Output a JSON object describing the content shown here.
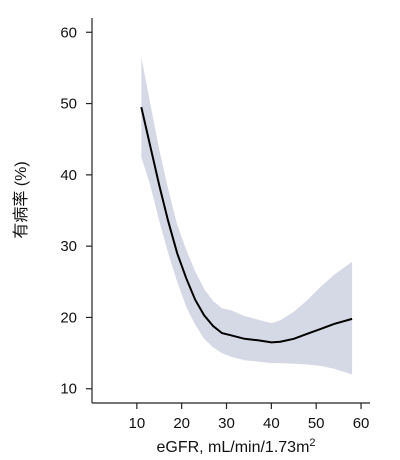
{
  "chart_data": {
    "type": "line",
    "xlabel": "eGFR, mL/min/1.73m",
    "xlabel_superscript": "2",
    "ylabel": "有病率 (%)",
    "xlim": [
      0,
      62
    ],
    "ylim": [
      8,
      62
    ],
    "x_ticks": [
      10,
      20,
      30,
      40,
      50,
      60
    ],
    "y_ticks": [
      10,
      20,
      30,
      40,
      50,
      60
    ],
    "grid": false,
    "legend": false,
    "colors": {
      "line": "#000000",
      "band": "#d5d9e6",
      "axis": "#222222"
    },
    "series": [
      {
        "x": [
          11,
          13,
          15,
          17,
          19,
          21,
          23,
          25,
          27,
          29,
          31,
          34,
          37,
          40,
          42,
          45,
          48,
          51,
          54,
          58
        ],
        "values": [
          49.5,
          44.0,
          38.5,
          33.5,
          29.0,
          25.5,
          22.5,
          20.3,
          18.8,
          17.8,
          17.5,
          17.0,
          16.8,
          16.5,
          16.6,
          17.0,
          17.7,
          18.4,
          19.1,
          19.8
        ]
      }
    ],
    "ci_band": {
      "x": [
        11,
        13,
        15,
        17,
        19,
        21,
        23,
        25,
        27,
        29,
        31,
        34,
        37,
        40,
        42,
        45,
        48,
        51,
        54,
        58
      ],
      "lower": [
        42.5,
        38.5,
        33.5,
        29.0,
        25.0,
        21.5,
        19.0,
        17.0,
        15.8,
        15.0,
        14.5,
        14.0,
        13.8,
        13.6,
        13.6,
        13.5,
        13.4,
        13.2,
        12.8,
        12.0
      ],
      "upper": [
        56.5,
        50.0,
        43.5,
        38.0,
        33.0,
        29.5,
        26.5,
        24.0,
        22.3,
        21.3,
        21.0,
        20.2,
        19.7,
        19.2,
        19.6,
        20.8,
        22.4,
        24.3,
        26.0,
        27.8
      ]
    }
  }
}
